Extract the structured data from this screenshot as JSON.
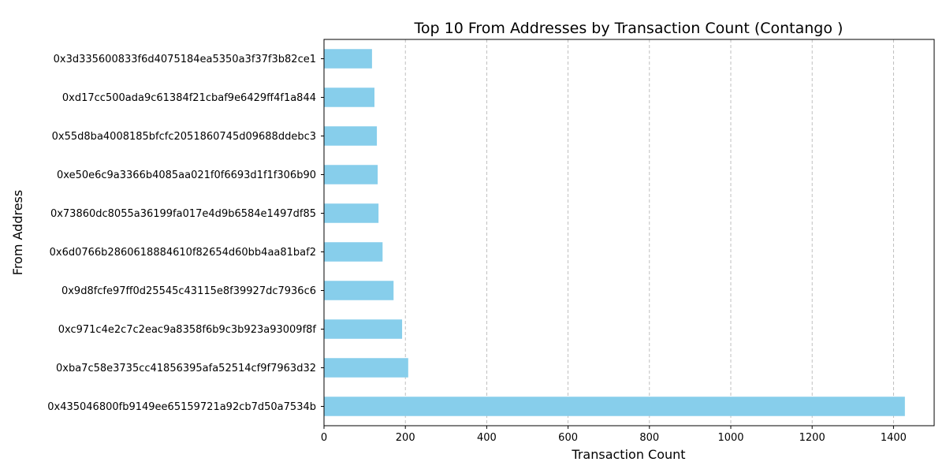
{
  "chart_data": {
    "type": "bar",
    "orientation": "horizontal",
    "title": "Top 10 From Addresses by Transaction Count (Contango )",
    "xlabel": "Transaction Count",
    "ylabel": "From Address",
    "xlim": [
      0,
      1500
    ],
    "x_ticks": [
      0,
      200,
      400,
      600,
      800,
      1000,
      1200,
      1400
    ],
    "grid": "x-axis dashed",
    "bar_color": "#87ceeb",
    "categories": [
      "0x435046800fb9149ee65159721a92cb7d50a7534b",
      "0xba7c58e3735cc41856395afa52514cf9f7963d32",
      "0xc971c4e2c7c2eac9a8358f6b9c3b923a93009f8f",
      "0x9d8fcfe97ff0d25545c43115e8f39927dc7936c6",
      "0x6d0766b2860618884610f82654d60bb4aa81baf2",
      "0x73860dc8055a36199fa017e4d9b6584e1497df85",
      "0xe50e6c9a3366b4085aa021f0f6693d1f1f306b90",
      "0x55d8ba4008185bfcfc2051860745d09688ddebc3",
      "0xd17cc500ada9c61384f21cbaf9e6429ff4f1a844",
      "0x3d335600833f6d4075184ea5350a3f37f3b82ce1"
    ],
    "values": [
      1428,
      207,
      192,
      171,
      144,
      134,
      132,
      130,
      124,
      118
    ]
  }
}
